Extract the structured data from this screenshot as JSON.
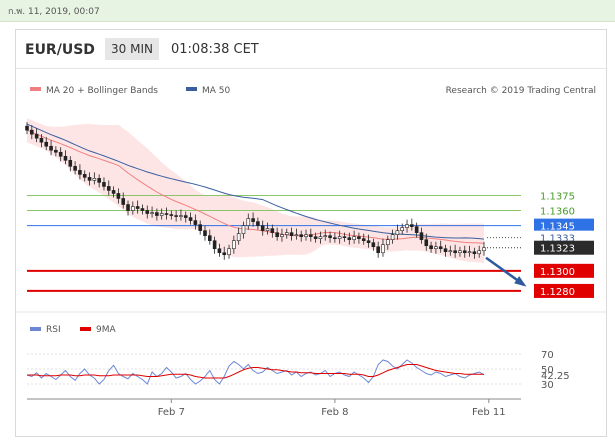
{
  "timestamp": "ก.พ. 11, 2019, 00:07",
  "header": {
    "pair": "EUR/USD",
    "timeframe": "30 MIN",
    "clock": "01:08:38 CET"
  },
  "colors": {
    "ma20": "#f08080",
    "ma50": "#3a5fa0",
    "bands": "#fbd4d4",
    "support": "#e00000",
    "resistance": "#8cc46a",
    "current": "#2f72e6",
    "rsi": "#6b86d6",
    "rsi_ma": "#e00000"
  },
  "chart_data": [
    {
      "type": "candlestick",
      "legend": [
        {
          "name": "MA 20 + Bollinger Bands",
          "color": "#f08080"
        },
        {
          "name": "MA 50",
          "color": "#3a5fa0"
        }
      ],
      "credit": "Research © 2019 Trading Central",
      "ylim": [
        1.1265,
        1.147
      ],
      "x_ticks": [
        {
          "label": "Feb 7",
          "index": 30
        },
        {
          "label": "Feb 8",
          "index": 64
        },
        {
          "label": "Feb 11",
          "index": 96
        }
      ],
      "levels": [
        {
          "value": 1.1375,
          "label": "1.1375",
          "kind": "resistance"
        },
        {
          "value": 1.136,
          "label": "1.1360",
          "kind": "resistance"
        },
        {
          "value": 1.1345,
          "label": "1.1345",
          "kind": "pivot"
        },
        {
          "value": 1.1333,
          "label": "1.1333",
          "kind": "ma50"
        },
        {
          "value": 1.1323,
          "label": "1.1323",
          "kind": "last"
        },
        {
          "value": 1.13,
          "label": "1.1300",
          "kind": "support"
        },
        {
          "value": 1.128,
          "label": "1.1280",
          "kind": "support"
        }
      ],
      "close": [
        1.144,
        1.1436,
        1.1432,
        1.1428,
        1.1424,
        1.142,
        1.1418,
        1.1414,
        1.141,
        1.1404,
        1.14,
        1.1396,
        1.1393,
        1.139,
        1.1392,
        1.1388,
        1.1384,
        1.138,
        1.1377,
        1.1372,
        1.1366,
        1.136,
        1.1364,
        1.1362,
        1.136,
        1.1357,
        1.1358,
        1.1355,
        1.1357,
        1.1356,
        1.1355,
        1.1354,
        1.1355,
        1.1353,
        1.135,
        1.1346,
        1.134,
        1.1335,
        1.133,
        1.1322,
        1.1318,
        1.1316,
        1.1322,
        1.133,
        1.1337,
        1.1345,
        1.1352,
        1.1349,
        1.1345,
        1.134,
        1.1342,
        1.1338,
        1.1334,
        1.1336,
        1.1338,
        1.1335,
        1.1336,
        1.1334,
        1.1336,
        1.1334,
        1.1332,
        1.1334,
        1.1335,
        1.1333,
        1.1332,
        1.1334,
        1.1333,
        1.1331,
        1.1334,
        1.1332,
        1.133,
        1.1328,
        1.1324,
        1.1318,
        1.1326,
        1.1331,
        1.1336,
        1.134,
        1.1343,
        1.1346,
        1.1344,
        1.1338,
        1.1331,
        1.1325,
        1.1322,
        1.1324,
        1.1322,
        1.1319,
        1.132,
        1.1318,
        1.132,
        1.1318,
        1.1319,
        1.1317,
        1.132,
        1.1323
      ]
    },
    {
      "type": "line",
      "legend": [
        {
          "name": "RSI",
          "color": "#6b86d6"
        },
        {
          "name": "9MA",
          "color": "#e00000"
        }
      ],
      "ylim": [
        22,
        78
      ],
      "y_ticks": [
        {
          "value": 70,
          "label": "70"
        },
        {
          "value": 50,
          "label": "50"
        },
        {
          "value": 30,
          "label": "30"
        }
      ],
      "last_label": "42.25",
      "series": [
        {
          "name": "RSI",
          "values": [
            42,
            40,
            45,
            38,
            44,
            40,
            36,
            42,
            48,
            40,
            35,
            44,
            50,
            42,
            38,
            30,
            36,
            48,
            55,
            44,
            40,
            37,
            44,
            40,
            36,
            30,
            46,
            40,
            44,
            52,
            46,
            38,
            40,
            44,
            36,
            30,
            34,
            40,
            48,
            36,
            30,
            40,
            54,
            60,
            56,
            50,
            56,
            48,
            44,
            46,
            52,
            48,
            44,
            46,
            48,
            42,
            46,
            40,
            44,
            46,
            42,
            44,
            48,
            40,
            44,
            46,
            42,
            40,
            46,
            42,
            38,
            32,
            40,
            56,
            62,
            60,
            54,
            50,
            56,
            62,
            58,
            52,
            48,
            44,
            42,
            46,
            44,
            40,
            42,
            44,
            40,
            38,
            42,
            44,
            46,
            42.25
          ]
        },
        {
          "name": "9MA",
          "values": [
            42,
            42,
            42,
            41,
            41,
            41,
            41,
            42,
            42,
            42,
            41,
            41,
            42,
            42,
            42,
            41,
            41,
            41,
            42,
            42,
            42,
            42,
            42,
            42,
            41,
            40,
            40,
            40,
            41,
            42,
            43,
            43,
            43,
            43,
            42,
            40,
            39,
            38,
            38,
            38,
            38,
            38,
            40,
            43,
            46,
            49,
            51,
            52,
            52,
            51,
            50,
            49,
            49,
            48,
            47,
            46,
            46,
            45,
            45,
            45,
            44,
            44,
            44,
            44,
            44,
            44,
            44,
            43,
            43,
            43,
            42,
            40,
            40,
            42,
            45,
            48,
            50,
            52,
            54,
            56,
            56,
            56,
            54,
            52,
            50,
            48,
            47,
            46,
            45,
            44,
            44,
            43,
            43,
            43,
            43,
            43
          ]
        }
      ]
    }
  ]
}
